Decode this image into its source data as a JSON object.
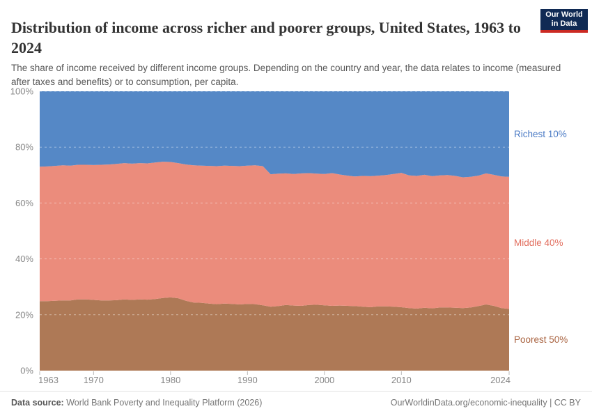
{
  "header": {
    "title": "Distribution of income across richer and poorer groups, United States, 1963 to 2024",
    "subtitle": "The share of income received by different income groups. Depending on the country and year, the data relates to income (measured after taxes and benefits) or to consumption, per capita.",
    "logo": {
      "line1": "Our World",
      "line2": "in Data",
      "bg_color": "#102A54",
      "accent_color": "#CB2A23"
    }
  },
  "footer": {
    "source_label": "Data source:",
    "source_text": " World Bank Poverty and Inequality Platform (2026)",
    "credit": "OurWorldinData.org/economic-inequality | CC BY"
  },
  "chart_data": {
    "type": "area",
    "stacked": true,
    "title": "Distribution of income across richer and poorer groups, United States, 1963 to 2024",
    "xlabel": "",
    "ylabel": "",
    "ylim": [
      0,
      100
    ],
    "yticks": [
      0,
      20,
      40,
      60,
      80,
      100
    ],
    "ytick_suffix": "%",
    "xticks": [
      1963,
      1970,
      1980,
      1990,
      2000,
      2010,
      2024
    ],
    "grid": "dashed",
    "legend_position": "right-of-plot",
    "axis_text_color": "#868686",
    "years": [
      1963,
      1964,
      1965,
      1966,
      1967,
      1968,
      1969,
      1970,
      1971,
      1972,
      1973,
      1974,
      1975,
      1976,
      1977,
      1978,
      1979,
      1980,
      1981,
      1982,
      1983,
      1984,
      1985,
      1986,
      1987,
      1988,
      1989,
      1990,
      1991,
      1992,
      1993,
      1994,
      1995,
      1996,
      1997,
      1998,
      1999,
      2000,
      2001,
      2002,
      2003,
      2004,
      2005,
      2006,
      2007,
      2008,
      2009,
      2010,
      2011,
      2012,
      2013,
      2014,
      2015,
      2016,
      2017,
      2018,
      2019,
      2020,
      2021,
      2022,
      2023,
      2024
    ],
    "series": [
      {
        "name": "Poorest 50%",
        "color": "#AE7956",
        "label_color": "#A96340",
        "values": [
          24.9,
          24.9,
          25.0,
          25.1,
          25.1,
          25.5,
          25.5,
          25.3,
          25.1,
          25.1,
          25.2,
          25.5,
          25.3,
          25.5,
          25.4,
          25.6,
          26.0,
          26.2,
          25.9,
          25.0,
          24.4,
          24.3,
          24.0,
          23.8,
          24.0,
          23.9,
          23.7,
          23.9,
          23.8,
          23.4,
          22.9,
          23.1,
          23.5,
          23.3,
          23.2,
          23.5,
          23.6,
          23.4,
          23.2,
          23.3,
          23.2,
          23.1,
          22.9,
          22.7,
          23.0,
          23.0,
          22.9,
          22.7,
          22.4,
          22.2,
          22.5,
          22.3,
          22.6,
          22.6,
          22.5,
          22.4,
          22.6,
          23.1,
          23.7,
          23.2,
          22.4,
          22.1
        ]
      },
      {
        "name": "Middle 40%",
        "color": "#EB8C7C",
        "label_color": "#E26E5E",
        "values": [
          48.1,
          48.2,
          48.3,
          48.4,
          48.3,
          48.2,
          48.2,
          48.3,
          48.6,
          48.7,
          48.8,
          48.8,
          48.8,
          48.8,
          48.8,
          48.9,
          48.8,
          48.5,
          48.4,
          48.8,
          49.1,
          49.1,
          49.3,
          49.4,
          49.4,
          49.4,
          49.5,
          49.5,
          49.7,
          49.8,
          47.4,
          47.4,
          47.1,
          47.1,
          47.4,
          47.2,
          46.9,
          47.0,
          47.5,
          46.9,
          46.6,
          46.4,
          46.8,
          46.9,
          46.8,
          47.0,
          47.5,
          48.1,
          47.5,
          47.5,
          47.6,
          47.3,
          47.3,
          47.4,
          47.2,
          46.8,
          46.8,
          46.7,
          46.9,
          46.9,
          47.1,
          47.3
        ]
      },
      {
        "name": "Richest 10%",
        "color": "#5588C6",
        "label_color": "#4B7BC5",
        "values": [
          27.0,
          26.9,
          26.7,
          26.5,
          26.6,
          26.3,
          26.3,
          26.4,
          26.3,
          26.2,
          26.0,
          25.7,
          25.9,
          25.7,
          25.8,
          25.5,
          25.2,
          25.3,
          25.7,
          26.2,
          26.5,
          26.6,
          26.7,
          26.8,
          26.6,
          26.7,
          26.8,
          26.6,
          26.5,
          26.8,
          29.7,
          29.5,
          29.4,
          29.6,
          29.4,
          29.3,
          29.5,
          29.6,
          29.3,
          29.8,
          30.2,
          30.5,
          30.3,
          30.4,
          30.2,
          30.0,
          29.6,
          29.2,
          30.1,
          30.3,
          29.9,
          30.4,
          30.1,
          30.0,
          30.3,
          30.8,
          30.6,
          30.2,
          29.4,
          29.9,
          30.5,
          30.6
        ]
      }
    ]
  }
}
